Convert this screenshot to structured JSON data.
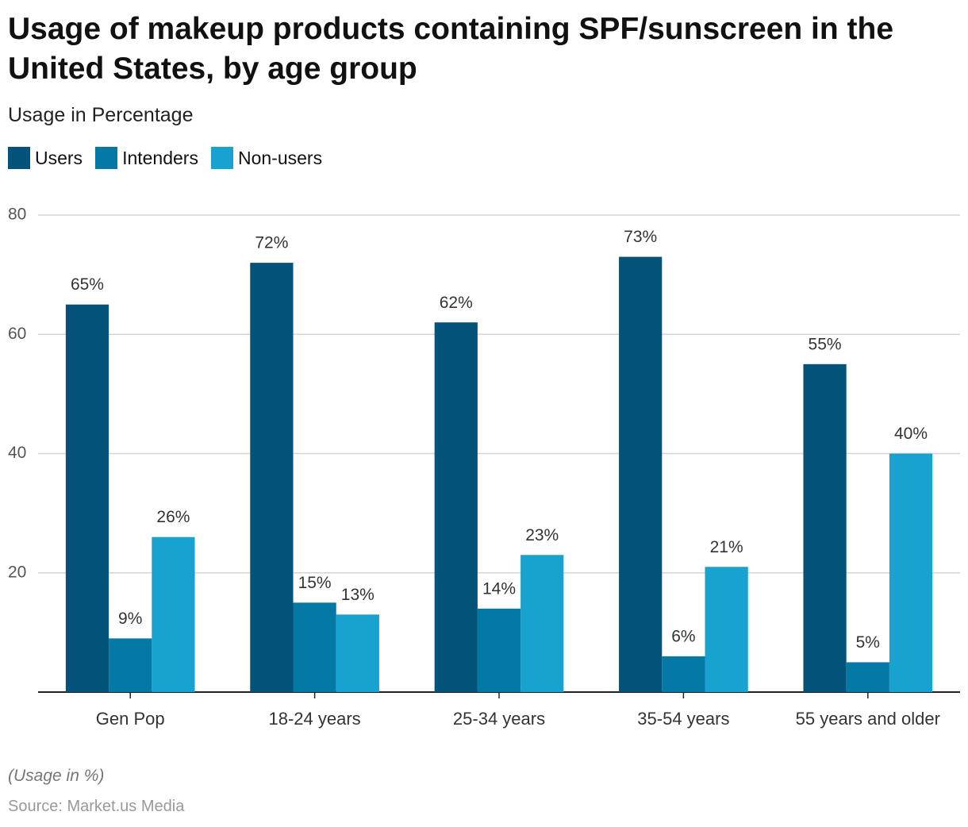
{
  "chart_data": {
    "type": "bar",
    "title": "Usage of makeup products containing SPF/sunscreen in the United States, by age group",
    "subtitle": "Usage in Percentage",
    "categories": [
      "Gen Pop",
      "18-24 years",
      "25-34 years",
      "35-54 years",
      "55 years and older"
    ],
    "series": [
      {
        "name": "Users",
        "color": "#03527a",
        "values": [
          65,
          72,
          62,
          73,
          55
        ],
        "value_labels": [
          "65%",
          "72%",
          "62%",
          "73%",
          "55%"
        ]
      },
      {
        "name": "Intenders",
        "color": "#0479a5",
        "values": [
          9,
          15,
          14,
          6,
          5
        ],
        "value_labels": [
          "9%",
          "15%",
          "14%",
          "6%",
          "5%"
        ]
      },
      {
        "name": "Non-users",
        "color": "#18a2cf",
        "values": [
          26,
          13,
          23,
          21,
          40
        ],
        "value_labels": [
          "26%",
          "13%",
          "23%",
          "21%",
          "40%"
        ]
      }
    ],
    "ylim": [
      0,
      80
    ],
    "yticks": [
      20,
      40,
      60,
      80
    ],
    "grid": true,
    "note": "(Usage in %)",
    "source": "Source: Market.us Media"
  }
}
